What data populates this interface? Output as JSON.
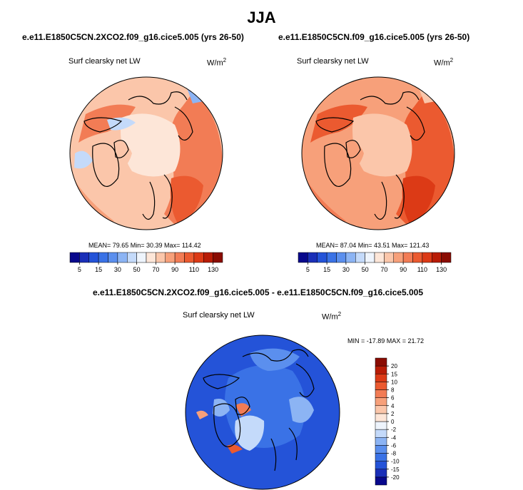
{
  "figure": {
    "season": "JJA"
  },
  "chart_data": [
    {
      "type": "heatmap",
      "projection": "polar-stereographic (north)",
      "title": "e.e11.E1850C5CN.2XCO2.f09_g16.cice5.005 (yrs 26-50)",
      "variable": "Surf clearsky net LW",
      "units": {
        "base": "W/m",
        "exp": "2"
      },
      "stats": {
        "mean": "79.65",
        "min": "30.39",
        "max": "114.42"
      },
      "stats_line": "MEAN=  79.65  Min=  30.39  Max=  114.42",
      "colorbar": {
        "orientation": "horizontal",
        "levels": [
          5,
          10,
          15,
          20,
          30,
          40,
          50,
          60,
          70,
          80,
          90,
          100,
          110,
          120,
          130
        ],
        "tick_labels": [
          "5",
          "15",
          "30",
          "50",
          "70",
          "90",
          "110",
          "130"
        ],
        "colors": [
          "#08088c",
          "#1a2fb8",
          "#2453d8",
          "#3a72e6",
          "#5b8fee",
          "#8cb4f4",
          "#c4dafa",
          "#eef4fc",
          "#fde6d8",
          "#fbc6aa",
          "#f7a07a",
          "#f27c55",
          "#eb5a30",
          "#dc3a16",
          "#b81c06",
          "#8a0c02"
        ]
      }
    },
    {
      "type": "heatmap",
      "projection": "polar-stereographic (north)",
      "title": "e.e11.E1850C5CN.f09_g16.cice5.005 (yrs 26-50)",
      "variable": "Surf clearsky net LW",
      "units": {
        "base": "W/m",
        "exp": "2"
      },
      "stats": {
        "mean": "87.04",
        "min": "43.51",
        "max": "121.43"
      },
      "stats_line": "MEAN=  87.04  Min=  43.51  Max=  121.43",
      "colorbar": {
        "orientation": "horizontal",
        "levels": [
          5,
          10,
          15,
          20,
          30,
          40,
          50,
          60,
          70,
          80,
          90,
          100,
          110,
          120,
          130
        ],
        "tick_labels": [
          "5",
          "15",
          "30",
          "50",
          "70",
          "90",
          "110",
          "130"
        ],
        "colors": [
          "#08088c",
          "#1a2fb8",
          "#2453d8",
          "#3a72e6",
          "#5b8fee",
          "#8cb4f4",
          "#c4dafa",
          "#eef4fc",
          "#fde6d8",
          "#fbc6aa",
          "#f7a07a",
          "#f27c55",
          "#eb5a30",
          "#dc3a16",
          "#b81c06",
          "#8a0c02"
        ]
      }
    },
    {
      "type": "heatmap",
      "projection": "polar-stereographic (north)",
      "title": "e.e11.E1850C5CN.2XCO2.f09_g16.cice5.005 - e.e11.E1850C5CN.f09_g16.cice5.005",
      "variable": "Surf clearsky net LW",
      "units": {
        "base": "W/m",
        "exp": "2"
      },
      "stats": {
        "min": "-17.89",
        "max": "21.72"
      },
      "stats_line": "MIN = -17.89 MAX =  21.72",
      "colorbar": {
        "orientation": "vertical",
        "levels": [
          -20,
          -15,
          -10,
          -8,
          -6,
          -4,
          -2,
          0,
          2,
          4,
          6,
          8,
          10,
          15,
          20
        ],
        "tick_labels": [
          "20",
          "15",
          "10",
          "8",
          "6",
          "4",
          "2",
          "0",
          "-2",
          "-4",
          "-6",
          "-8",
          "-10",
          "-15",
          "-20"
        ],
        "colors": [
          "#08088c",
          "#1a2fb8",
          "#2453d8",
          "#3a72e6",
          "#5b8fee",
          "#8cb4f4",
          "#c4dafa",
          "#eef4fc",
          "#fde6d8",
          "#fbc6aa",
          "#f7a07a",
          "#f27c55",
          "#eb5a30",
          "#dc3a16",
          "#b81c06",
          "#8a0c02"
        ]
      }
    }
  ]
}
